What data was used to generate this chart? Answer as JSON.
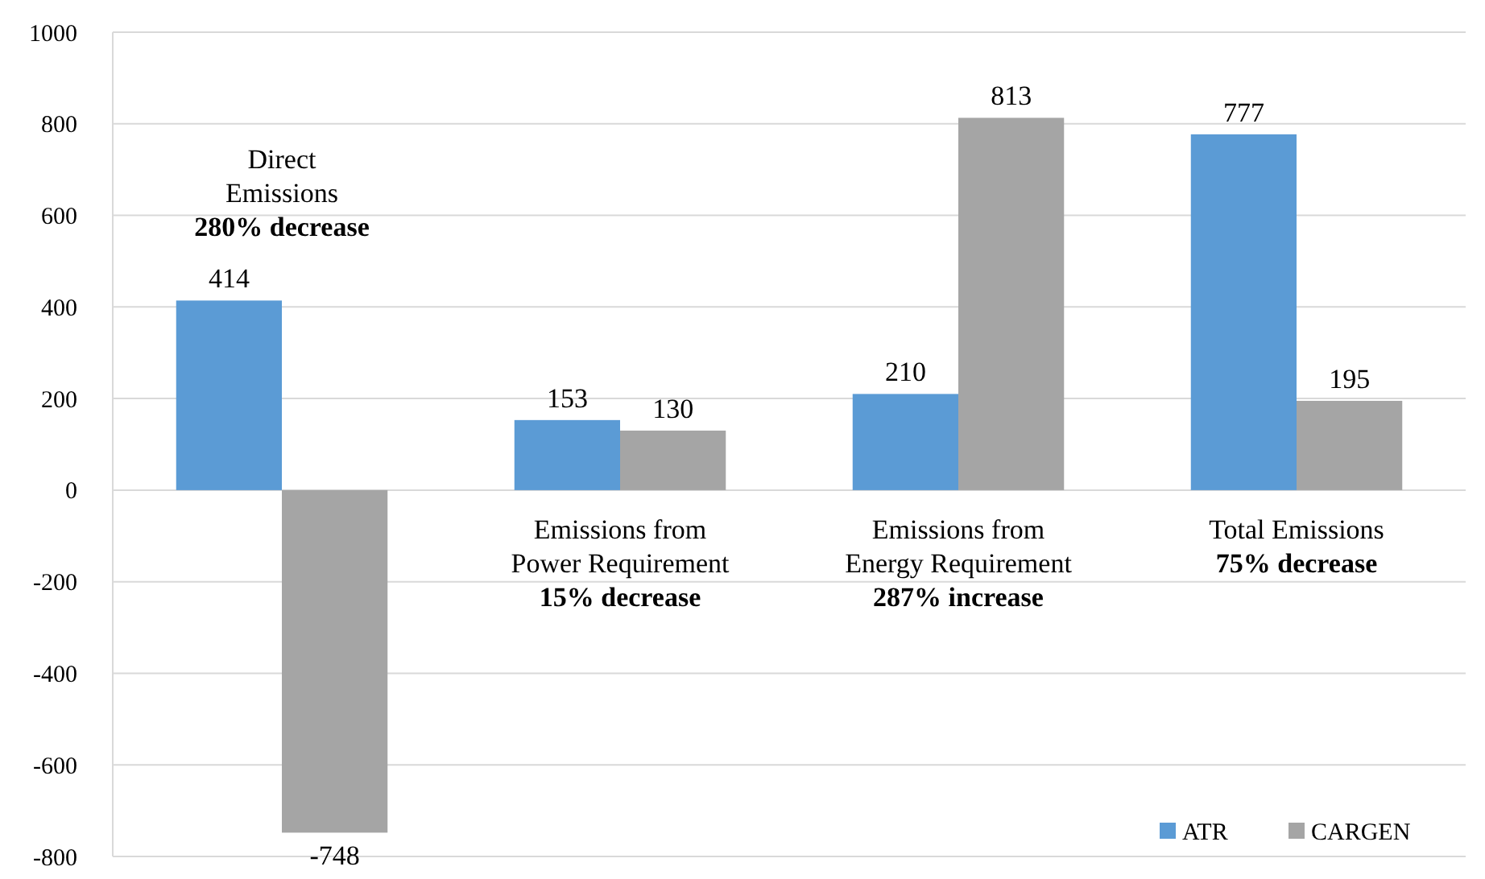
{
  "chart_data": {
    "type": "bar",
    "categories": [
      "Direct Emissions",
      "Emissions from Power Requirement",
      "Emissions from Energy Requirement",
      "Total Emissions"
    ],
    "series": [
      {
        "name": "ATR",
        "color": "#5b9bd5",
        "values": [
          414,
          153,
          210,
          777
        ]
      },
      {
        "name": "CARGEN",
        "color": "#a5a5a5",
        "values": [
          -748,
          130,
          813,
          195
        ]
      }
    ],
    "ylim": [
      -800,
      1000
    ],
    "yticks": [
      -800,
      -600,
      -400,
      -200,
      0,
      200,
      400,
      600,
      800,
      1000
    ],
    "grid": "y",
    "legend": "bottom right",
    "data_labels": true,
    "annotations": [
      "280% decrease",
      "15% decrease",
      "287% increase",
      "75% decrease"
    ]
  }
}
